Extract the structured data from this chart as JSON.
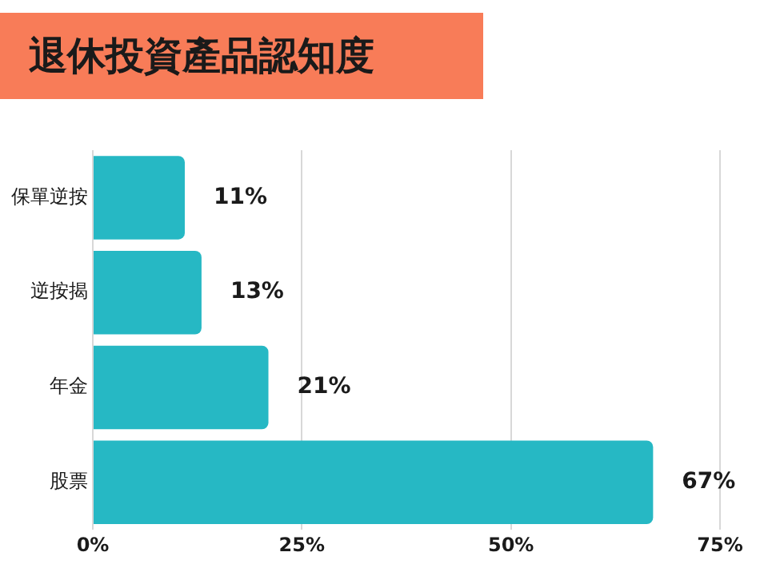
{
  "chart_data": {
    "type": "bar",
    "orientation": "horizontal",
    "title": "退休投資產品認知度",
    "categories": [
      "保單逆按",
      "逆按揭",
      "年金",
      "股票"
    ],
    "values": [
      11,
      13,
      21,
      67
    ],
    "color": "#26b8c4",
    "value_labels": [
      "11%",
      "13%",
      "21%",
      "67%"
    ],
    "xlim": [
      0,
      75
    ],
    "xticks": [
      {
        "value": 0,
        "label": "0%"
      },
      {
        "value": 25,
        "label": "25%"
      },
      {
        "value": 50,
        "label": "50%"
      },
      {
        "value": 75,
        "label": "75%"
      }
    ],
    "grid": "x",
    "legend": false
  }
}
